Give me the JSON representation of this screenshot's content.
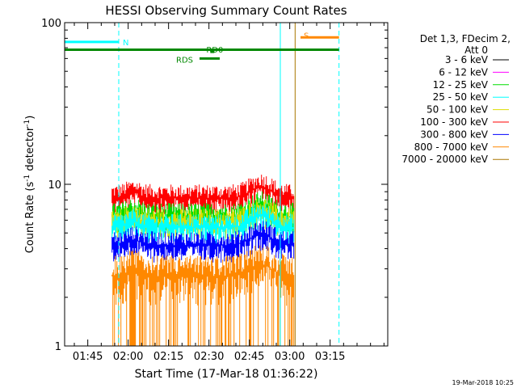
{
  "chart_data": {
    "type": "line",
    "title": "HESSI Observing Summary Count Rates",
    "xlabel": "Start Time (17-Mar-18 01:36:22)",
    "ylabel": "Count Rate (s",
    "ylabel_sup1": "-1",
    "ylabel_mid": " detector",
    "ylabel_sup2": "-1",
    "ylabel_end": ")",
    "y_scale": "log",
    "ylim": [
      1,
      100
    ],
    "x_range_min": [
      96.4,
      216.4
    ],
    "xticks": [
      {
        "value": 105,
        "label": "01:45"
      },
      {
        "value": 120,
        "label": "02:00"
      },
      {
        "value": 135,
        "label": "02:15"
      },
      {
        "value": 150,
        "label": "02:30"
      },
      {
        "value": 165,
        "label": "02:45"
      },
      {
        "value": 180,
        "label": "03:00"
      },
      {
        "value": 195,
        "label": "03:15"
      }
    ],
    "yticks": [
      {
        "value": 1,
        "label": "1"
      },
      {
        "value": 10,
        "label": "10"
      },
      {
        "value": 100,
        "label": "100"
      }
    ],
    "legend_header": [
      "Det 1,3, FDecim 2,",
      "Att 0"
    ],
    "legend_position": "right",
    "series": [
      {
        "name": "3 - 6 keV",
        "color": "#000000",
        "level": null
      },
      {
        "name": "6 - 12 keV",
        "color": "#ff00ff",
        "level": null
      },
      {
        "name": "12 - 25 keV",
        "color": "#00dd00",
        "level": 6.3
      },
      {
        "name": "25 - 50 keV",
        "color": "#00ffff",
        "level": 5.4
      },
      {
        "name": "50 - 100 keV",
        "color": "#dddd00",
        "level": 5.8
      },
      {
        "name": "100 - 300 keV",
        "color": "#ff0000",
        "level": 8.2
      },
      {
        "name": "300 - 800 keV",
        "color": "#0000ff",
        "level": 4.2
      },
      {
        "name": "800 - 7000 keV",
        "color": "#ff8800",
        "level": 2.7
      },
      {
        "name": "7000 - 20000 keV",
        "color": "#aa7700",
        "level": null
      }
    ],
    "data_span_min": [
      114,
      181.5
    ],
    "annotations": [
      {
        "label": "N",
        "color": "#00ffff",
        "y": 76,
        "x_start": 96.4,
        "x_end": 116.5
      },
      {
        "label": "S",
        "color": "#ff8800",
        "y": 81,
        "x_start": 184,
        "x_end": 198.3
      },
      {
        "label": "RD0",
        "color": "#008800",
        "y": 66,
        "x_start": 150.5,
        "x_end": 152
      },
      {
        "label": "RDS",
        "color": "#008800",
        "y": 60,
        "x_start": 146.5,
        "x_end": 154
      }
    ],
    "green_bar": {
      "color": "#008800",
      "y": 68,
      "x_start": 96.4,
      "x_end": 198.3
    },
    "vlines": [
      {
        "x": 96.4,
        "color": "#00ffff",
        "style": "solid"
      },
      {
        "x": 116.5,
        "color": "#00ffff",
        "style": "dashed"
      },
      {
        "x": 176.5,
        "color": "#00ffff",
        "style": "solid"
      },
      {
        "x": 182,
        "color": "#aa7700",
        "style": "solid"
      },
      {
        "x": 198.3,
        "color": "#00ffff",
        "style": "dashed"
      }
    ]
  },
  "footer_date": "19-Mar-2018 10:25"
}
